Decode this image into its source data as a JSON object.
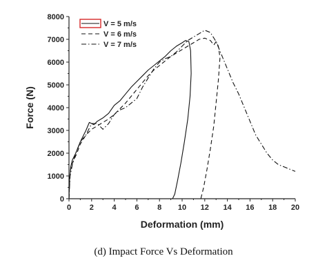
{
  "caption": "(d) Impact Force Vs Deformation",
  "colors": {
    "series": "#111111",
    "legend_highlight": "#d62828",
    "axis": "#222222"
  },
  "chart_data": {
    "type": "line",
    "title": "",
    "xlabel": "Deformation (mm)",
    "ylabel": "Force (N)",
    "xlim": [
      0,
      20
    ],
    "ylim": [
      0,
      8000
    ],
    "xticks": [
      0,
      2,
      4,
      6,
      8,
      10,
      12,
      14,
      16,
      18,
      20
    ],
    "yticks": [
      0,
      1000,
      2000,
      3000,
      4000,
      5000,
      6000,
      7000,
      8000
    ],
    "legend_position": "top-left",
    "series": [
      {
        "name": "V = 5 m/s",
        "style": "solid",
        "x": [
          0,
          0.05,
          0.15,
          0.3,
          0.6,
          1.0,
          1.5,
          1.8,
          2.2,
          2.5,
          3.0,
          3.5,
          4.0,
          4.5,
          5.0,
          5.5,
          6.0,
          6.5,
          7.0,
          7.5,
          8.0,
          8.5,
          9.0,
          9.5,
          10.0,
          10.3,
          10.6,
          10.75,
          10.8,
          10.7,
          10.5,
          10.2,
          9.9,
          9.6,
          9.35,
          9.15
        ],
        "y": [
          0,
          800,
          1400,
          1700,
          2000,
          2500,
          3000,
          3350,
          3250,
          3400,
          3550,
          3750,
          4100,
          4300,
          4600,
          4900,
          5150,
          5400,
          5650,
          5850,
          6050,
          6250,
          6500,
          6700,
          6850,
          6950,
          6900,
          6500,
          5500,
          4500,
          3500,
          2500,
          1600,
          800,
          200,
          0
        ]
      },
      {
        "name": "V = 6 m/s",
        "style": "dashed",
        "x": [
          0,
          0.1,
          0.3,
          0.7,
          1.0,
          1.5,
          2.0,
          2.5,
          3.0,
          3.5,
          4.0,
          4.5,
          5.0,
          5.5,
          6.0,
          6.5,
          7.0,
          7.5,
          8.0,
          8.5,
          9.0,
          9.5,
          10.0,
          10.5,
          11.0,
          11.5,
          12.0,
          12.5,
          12.8,
          13.0,
          13.2,
          13.35,
          13.2,
          13.0,
          12.8,
          12.5,
          12.2,
          11.9,
          11.65
        ],
        "y": [
          0,
          1200,
          1550,
          2000,
          2400,
          2800,
          3050,
          3200,
          3350,
          3500,
          3700,
          3950,
          4200,
          4500,
          4800,
          5100,
          5400,
          5650,
          5850,
          6050,
          6250,
          6400,
          6550,
          6700,
          6850,
          7000,
          7050,
          6950,
          6750,
          6900,
          6700,
          6200,
          5200,
          4200,
          3200,
          2200,
          1300,
          500,
          0
        ]
      },
      {
        "name": "V = 7 m/s",
        "style": "dashdot",
        "x": [
          0,
          0.1,
          0.3,
          0.6,
          1.0,
          1.5,
          2.0,
          2.5,
          3.0,
          3.5,
          4.0,
          4.5,
          5.0,
          5.5,
          6.0,
          6.5,
          7.0,
          7.5,
          8.0,
          8.5,
          9.0,
          9.5,
          10.0,
          10.5,
          11.0,
          11.5,
          12.0,
          12.5,
          13.0,
          13.5,
          14.0,
          14.5,
          15.0,
          15.5,
          16.0,
          16.5,
          17.0,
          17.5,
          18.0,
          18.5,
          19.0,
          19.5,
          20.0
        ],
        "y": [
          0,
          1000,
          1500,
          2000,
          2500,
          2800,
          3300,
          3300,
          3050,
          3300,
          3700,
          3900,
          4000,
          4200,
          4400,
          4900,
          5300,
          5700,
          6000,
          6150,
          6250,
          6450,
          6700,
          6950,
          7100,
          7250,
          7400,
          7300,
          6900,
          6300,
          5700,
          5100,
          4600,
          4000,
          3400,
          2800,
          2400,
          2000,
          1700,
          1500,
          1400,
          1300,
          1200
        ]
      }
    ]
  }
}
